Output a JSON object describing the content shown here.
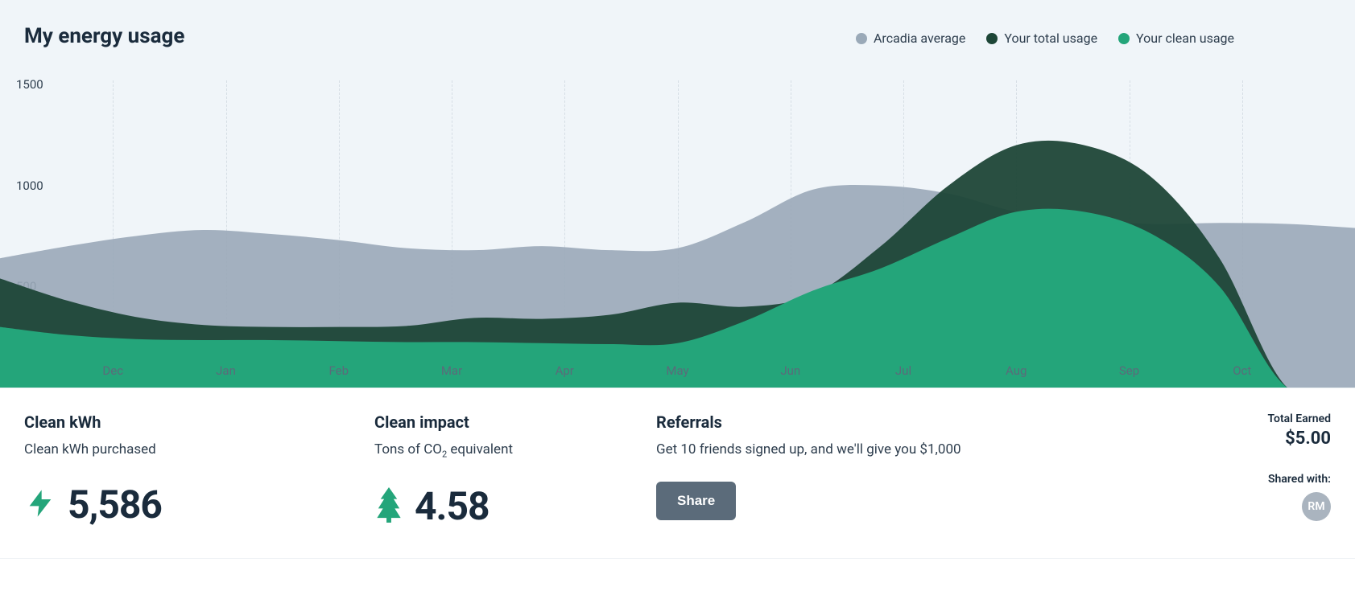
{
  "chart": {
    "title": "My energy usage",
    "type": "area",
    "background_color": "#f0f5f9",
    "x_labels": [
      "Dec",
      "Jan",
      "Feb",
      "Mar",
      "Apr",
      "May",
      "Jun",
      "Jul",
      "Aug",
      "Sep",
      "Oct"
    ],
    "x_label_color": "#5b6b7a",
    "grid_color": "rgba(100,120,140,0.18)",
    "y_ticks": [
      500,
      1000,
      1500
    ],
    "ylim": [
      0,
      1600
    ],
    "series": [
      {
        "key": "arcadia_average",
        "label": "Arcadia average",
        "color": "#9aa9b8",
        "opacity": 0.9,
        "values": [
          640,
          700,
          750,
          780,
          760,
          730,
          690,
          680,
          700,
          680,
          690,
          820,
          980,
          1000,
          960,
          870,
          830,
          810,
          815,
          810,
          790
        ]
      },
      {
        "key": "your_total",
        "label": "Your total usage",
        "color": "#1d4637",
        "opacity": 0.95,
        "values": [
          540,
          430,
          350,
          310,
          300,
          300,
          305,
          345,
          340,
          360,
          420,
          400,
          460,
          700,
          1000,
          1200,
          1200,
          1040,
          640,
          0,
          0
        ]
      },
      {
        "key": "your_clean",
        "label": "Your clean usage",
        "color": "#24a57a",
        "opacity": 1.0,
        "values": [
          300,
          260,
          240,
          235,
          235,
          230,
          225,
          225,
          220,
          215,
          220,
          330,
          480,
          590,
          740,
          870,
          870,
          760,
          500,
          0,
          0
        ]
      }
    ],
    "title_fontsize": 26,
    "label_fontsize": 15,
    "legend_fontsize": 16
  },
  "cards": {
    "clean_kwh": {
      "title": "Clean kWh",
      "subtitle": "Clean kWh purchased",
      "value": "5,586",
      "icon_color": "#24a57a"
    },
    "clean_impact": {
      "title": "Clean impact",
      "subtitle_prefix": "Tons of CO",
      "subtitle_sub": "2",
      "subtitle_suffix": " equivalent",
      "value": "4.58",
      "icon_color": "#24a57a"
    },
    "referrals": {
      "title": "Referrals",
      "subtitle": "Get 10 friends signed up, and we'll give you $1,000",
      "button_label": "Share",
      "button_bg": "#5b6b7a"
    },
    "earned": {
      "label": "Total Earned",
      "value": "$5.00"
    },
    "shared_with": {
      "label": "Shared with:",
      "initials": "RM",
      "avatar_bg": "#aab4bf"
    }
  }
}
